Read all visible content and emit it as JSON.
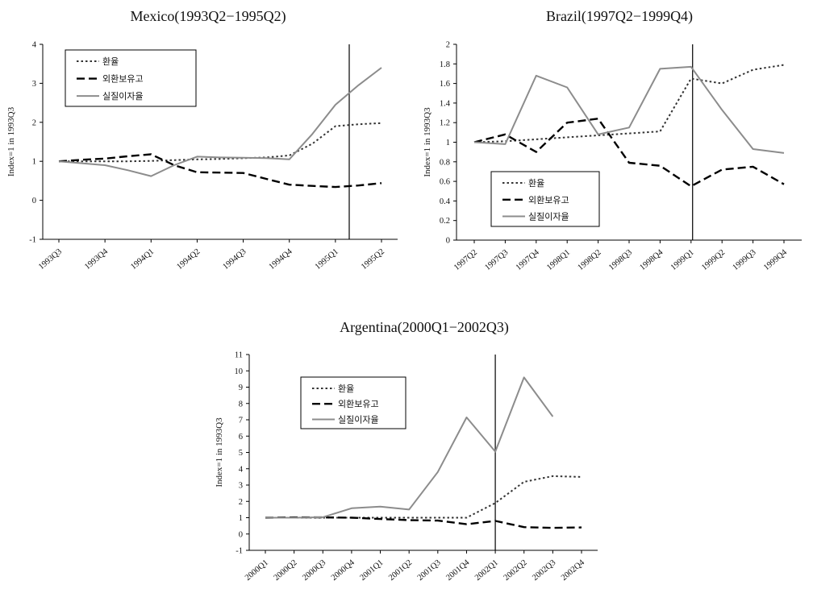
{
  "colors": {
    "exchange": "#333333",
    "reserves": "#000000",
    "real_rate": "#8c8c8c",
    "axis": "#000000"
  },
  "chart_data": [
    {
      "type": "line",
      "title": "Mexico(1993Q2−1995Q2)",
      "ylabel": "Index=1 in 1993Q3",
      "ylim": [
        -1,
        4
      ],
      "yticks": [
        -1,
        0,
        1,
        2,
        3,
        4
      ],
      "categories": [
        "1993Q3",
        "1993Q4",
        "1994Q1",
        "1994Q2",
        "1994Q3",
        "1994Q4",
        "1995Q1",
        "1995Q2"
      ],
      "x": [
        0,
        0.5,
        1,
        1.5,
        2,
        2.5,
        3,
        3.5,
        4,
        4.5,
        5,
        5.5,
        6,
        6.5,
        7
      ],
      "vline_at": 6.3,
      "legend": "top-left",
      "grid": false,
      "series": [
        {
          "name": "환율",
          "style": "dotted",
          "values": [
            1.0,
            1.0,
            1.0,
            1.0,
            1.01,
            1.03,
            1.05,
            1.06,
            1.08,
            1.1,
            1.15,
            1.45,
            1.9,
            1.95,
            1.98
          ]
        },
        {
          "name": "외환보유고",
          "style": "dashed",
          "values": [
            1.0,
            1.04,
            1.07,
            1.13,
            1.18,
            0.9,
            0.72,
            0.71,
            0.7,
            0.55,
            0.4,
            0.37,
            0.34,
            0.38,
            0.44
          ]
        },
        {
          "name": "실질이자율",
          "style": "solid",
          "values": [
            1.0,
            0.95,
            0.9,
            0.77,
            0.62,
            0.9,
            1.12,
            1.1,
            1.09,
            1.08,
            1.05,
            1.7,
            2.45,
            2.95,
            3.4
          ]
        }
      ]
    },
    {
      "type": "line",
      "title": "Brazil(1997Q2−1999Q4)",
      "ylabel": "Index=1 in 1993Q3",
      "ylim": [
        0,
        2
      ],
      "yticks": [
        0,
        0.2,
        0.4,
        0.6,
        0.8,
        1,
        1.2,
        1.4,
        1.6,
        1.8,
        2
      ],
      "categories": [
        "1997Q2",
        "1997Q3",
        "1997Q4",
        "1998Q1",
        "1998Q2",
        "1998Q3",
        "1998Q4",
        "1999Q1",
        "1999Q2",
        "1999Q3",
        "1999Q4"
      ],
      "x": [
        0,
        1,
        2,
        3,
        4,
        5,
        6,
        7,
        8,
        9,
        10
      ],
      "vline_at": 7.05,
      "legend": "bottom-left",
      "grid": false,
      "series": [
        {
          "name": "환율",
          "style": "dotted",
          "values": [
            1.0,
            1.01,
            1.03,
            1.05,
            1.07,
            1.09,
            1.11,
            1.65,
            1.6,
            1.74,
            1.79
          ]
        },
        {
          "name": "외환보유고",
          "style": "dashed",
          "values": [
            1.0,
            1.08,
            0.9,
            1.2,
            1.24,
            0.79,
            0.76,
            0.55,
            0.72,
            0.75,
            0.57
          ]
        },
        {
          "name": "실질이자율",
          "style": "solid",
          "values": [
            1.0,
            0.98,
            1.68,
            1.56,
            1.08,
            1.15,
            1.75,
            1.77,
            1.33,
            0.93,
            0.89
          ]
        }
      ]
    },
    {
      "type": "line",
      "title": "Argentina(2000Q1−2002Q3)",
      "ylabel": "Index=1 in 1993Q3",
      "ylim": [
        -1,
        11
      ],
      "yticks": [
        -1,
        0,
        1,
        2,
        3,
        4,
        5,
        6,
        7,
        8,
        9,
        10,
        11
      ],
      "categories": [
        "2000Q1",
        "2000Q2",
        "2000Q3",
        "2000Q4",
        "2001Q1",
        "2001Q2",
        "2001Q3",
        "2001Q4",
        "2002Q1",
        "2002Q2",
        "2002Q3",
        "2002Q4"
      ],
      "x": [
        0,
        1,
        2,
        3,
        4,
        5,
        6,
        7,
        8,
        9,
        10,
        11
      ],
      "vline_at": 8.0,
      "legend": "top-left",
      "grid": false,
      "series": [
        {
          "name": "환율",
          "style": "dotted",
          "values": [
            1.0,
            1.0,
            1.0,
            1.0,
            1.0,
            1.0,
            1.0,
            1.0,
            1.9,
            3.2,
            3.55,
            3.5
          ]
        },
        {
          "name": "외환보유고",
          "style": "dashed",
          "values": [
            1.0,
            1.02,
            1.02,
            1.0,
            0.92,
            0.85,
            0.82,
            0.6,
            0.8,
            0.42,
            0.38,
            0.4
          ]
        },
        {
          "name": "실질이자율",
          "style": "solid",
          "values": [
            1.0,
            1.0,
            1.03,
            1.58,
            1.68,
            1.5,
            3.8,
            7.15,
            5.05,
            9.6,
            7.2,
            null
          ]
        }
      ]
    }
  ]
}
